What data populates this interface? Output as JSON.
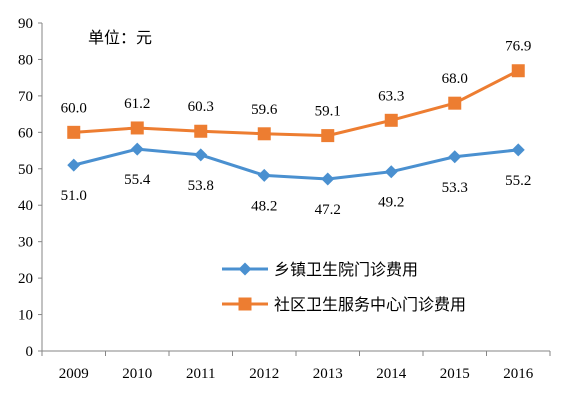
{
  "chart_data": {
    "type": "line",
    "unit_label": "单位：元",
    "categories": [
      "2009",
      "2010",
      "2011",
      "2012",
      "2013",
      "2014",
      "2015",
      "2016"
    ],
    "series": [
      {
        "name": "乡镇卫生院门诊费用",
        "values": [
          51.0,
          55.4,
          53.8,
          48.2,
          47.2,
          49.2,
          53.3,
          55.2
        ],
        "labels": [
          "51.0",
          "55.4",
          "53.8",
          "48.2",
          "47.2",
          "49.2",
          "53.3",
          "55.2"
        ],
        "color": "#4A90D0",
        "marker": "diamond",
        "label_position": "below"
      },
      {
        "name": "社区卫生服务中心门诊费用",
        "values": [
          60.0,
          61.2,
          60.3,
          59.6,
          59.1,
          63.3,
          68.0,
          76.9
        ],
        "labels": [
          "60.0",
          "61.2",
          "60.3",
          "59.6",
          "59.1",
          "63.3",
          "68.0",
          "76.9"
        ],
        "color": "#ED7D31",
        "marker": "square",
        "label_position": "above"
      }
    ],
    "ylim": [
      0,
      90
    ],
    "yticks": [
      "0",
      "10",
      "20",
      "30",
      "40",
      "50",
      "60",
      "70",
      "80",
      "90"
    ],
    "grid": false,
    "legend_position": "lower-right"
  }
}
